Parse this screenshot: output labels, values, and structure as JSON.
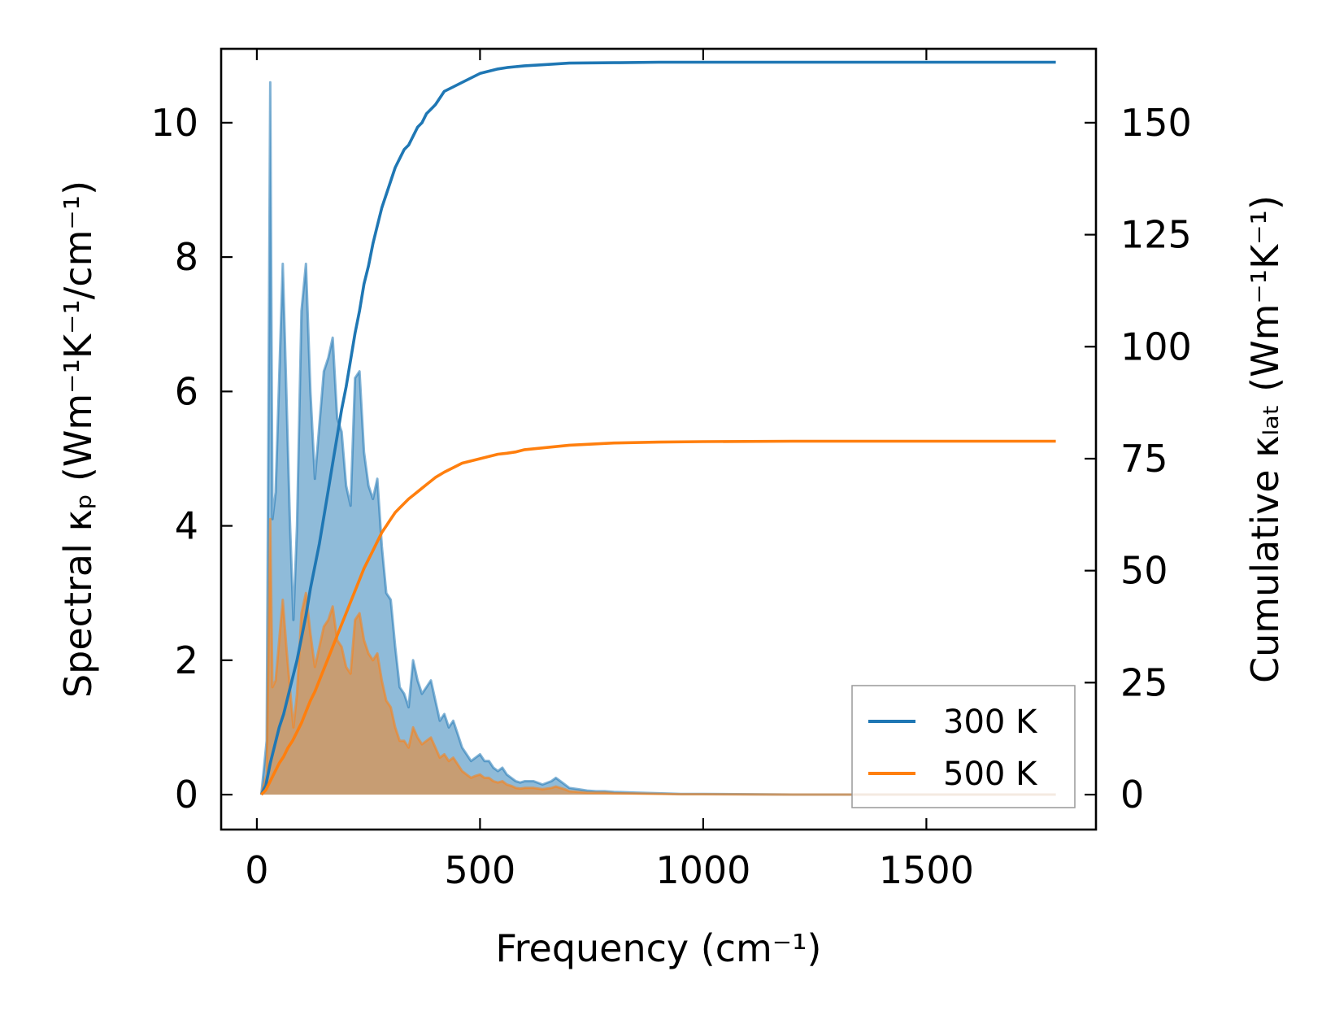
{
  "chart_data": {
    "type": "line",
    "x_axis": {
      "label": "Frequency (cm⁻¹)",
      "range": [
        -80,
        1880
      ],
      "ticks": [
        0,
        500,
        1000,
        1500
      ]
    },
    "y_axis_left": {
      "label": "Spectral κₚ (Wm⁻¹K⁻¹/cm⁻¹)",
      "range": [
        -0.52,
        11.1
      ],
      "ticks": [
        0,
        2,
        4,
        6,
        8,
        10
      ]
    },
    "y_axis_right": {
      "label": "Cumulative κₗₐₜ (Wm⁻¹K⁻¹)",
      "range": [
        -7.8,
        166.5
      ],
      "ticks": [
        0,
        25,
        50,
        75,
        100,
        125,
        150
      ]
    },
    "legend": {
      "position": "lower-right"
    },
    "grid": false,
    "series": [
      {
        "name": "300 K",
        "color": "#1f77b4",
        "spectral": {
          "x": [
            10,
            22,
            30,
            35,
            42,
            50,
            58,
            66,
            74,
            82,
            90,
            100,
            110,
            120,
            130,
            140,
            150,
            160,
            170,
            180,
            190,
            200,
            210,
            220,
            230,
            240,
            250,
            260,
            270,
            280,
            290,
            300,
            310,
            320,
            330,
            340,
            350,
            360,
            370,
            380,
            390,
            400,
            410,
            420,
            430,
            440,
            450,
            460,
            470,
            480,
            490,
            500,
            510,
            520,
            530,
            540,
            550,
            560,
            570,
            580,
            590,
            600,
            620,
            640,
            660,
            670,
            680,
            690,
            700,
            720,
            740,
            760,
            780,
            800,
            850,
            900,
            950,
            1000,
            1200,
            1500,
            1790
          ],
          "y": [
            0,
            0.8,
            10.6,
            4.1,
            4.5,
            6.2,
            7.9,
            6.0,
            4.1,
            2.6,
            4.0,
            7.2,
            7.9,
            6.0,
            4.7,
            5.5,
            6.3,
            6.5,
            6.8,
            5.6,
            5.4,
            4.6,
            4.3,
            6.2,
            6.3,
            5.1,
            4.6,
            4.4,
            4.7,
            3.7,
            3.0,
            2.9,
            2.2,
            1.6,
            1.5,
            1.3,
            2.0,
            1.7,
            1.5,
            1.6,
            1.7,
            1.4,
            1.1,
            1.2,
            1.0,
            1.1,
            0.9,
            0.7,
            0.6,
            0.5,
            0.55,
            0.6,
            0.5,
            0.5,
            0.4,
            0.35,
            0.4,
            0.3,
            0.25,
            0.2,
            0.18,
            0.2,
            0.2,
            0.15,
            0.2,
            0.25,
            0.2,
            0.15,
            0.1,
            0.08,
            0.06,
            0.05,
            0.05,
            0.04,
            0.03,
            0.02,
            0.01,
            0.01,
            0,
            0,
            0
          ]
        },
        "cumulative": {
          "x": [
            10,
            20,
            30,
            40,
            50,
            60,
            70,
            80,
            90,
            100,
            110,
            120,
            130,
            140,
            150,
            160,
            170,
            180,
            190,
            200,
            210,
            220,
            230,
            240,
            250,
            260,
            270,
            280,
            290,
            300,
            310,
            320,
            330,
            340,
            350,
            360,
            370,
            380,
            390,
            400,
            420,
            440,
            460,
            480,
            500,
            520,
            540,
            560,
            580,
            600,
            650,
            700,
            800,
            900,
            1000,
            1200,
            1500,
            1790
          ],
          "y": [
            0,
            2,
            7,
            11,
            15,
            18,
            22,
            26,
            30,
            35,
            40,
            46,
            51,
            56,
            62,
            68,
            74,
            80,
            86,
            91,
            97,
            103,
            108,
            114,
            118,
            123,
            127,
            131,
            134,
            137,
            140,
            142,
            144,
            145,
            147,
            149,
            150,
            152,
            153,
            154,
            157,
            158,
            159,
            160,
            161,
            161.5,
            162,
            162.3,
            162.5,
            162.7,
            163,
            163.3,
            163.4,
            163.5,
            163.5,
            163.5,
            163.5,
            163.5
          ]
        }
      },
      {
        "name": "500 K",
        "color": "#ff7f0e",
        "spectral": {
          "x": [
            10,
            22,
            30,
            35,
            42,
            50,
            58,
            66,
            74,
            82,
            90,
            100,
            110,
            120,
            130,
            140,
            150,
            160,
            170,
            180,
            190,
            200,
            210,
            220,
            230,
            240,
            250,
            260,
            270,
            280,
            290,
            300,
            310,
            320,
            330,
            340,
            350,
            360,
            370,
            380,
            390,
            400,
            410,
            420,
            430,
            440,
            450,
            460,
            470,
            480,
            490,
            500,
            510,
            520,
            530,
            540,
            550,
            560,
            570,
            580,
            590,
            600,
            620,
            640,
            660,
            670,
            680,
            690,
            700,
            720,
            740,
            760,
            780,
            800,
            850,
            900,
            950,
            1000,
            1200,
            1500,
            1790
          ],
          "y": [
            0,
            0.3,
            4.1,
            1.6,
            1.7,
            2.3,
            2.9,
            2.2,
            1.6,
            1.0,
            1.5,
            2.7,
            3.0,
            2.4,
            1.9,
            2.2,
            2.5,
            2.6,
            2.8,
            2.3,
            2.2,
            1.9,
            1.8,
            2.6,
            2.7,
            2.3,
            2.1,
            2.0,
            2.1,
            1.7,
            1.4,
            1.3,
            1.0,
            0.8,
            0.8,
            0.7,
            1.0,
            0.85,
            0.75,
            0.8,
            0.85,
            0.7,
            0.55,
            0.6,
            0.5,
            0.55,
            0.45,
            0.35,
            0.3,
            0.25,
            0.28,
            0.3,
            0.25,
            0.25,
            0.2,
            0.18,
            0.2,
            0.15,
            0.13,
            0.1,
            0.09,
            0.1,
            0.1,
            0.08,
            0.1,
            0.12,
            0.1,
            0.08,
            0.05,
            0.04,
            0.03,
            0.03,
            0.03,
            0.02,
            0.015,
            0.01,
            0.005,
            0.005,
            0,
            0,
            0
          ]
        },
        "cumulative": {
          "x": [
            10,
            20,
            30,
            40,
            50,
            60,
            70,
            80,
            90,
            100,
            110,
            120,
            130,
            140,
            150,
            160,
            170,
            180,
            190,
            200,
            210,
            220,
            230,
            240,
            250,
            260,
            270,
            280,
            290,
            300,
            310,
            320,
            330,
            340,
            350,
            360,
            370,
            380,
            390,
            400,
            420,
            440,
            460,
            480,
            500,
            520,
            540,
            560,
            580,
            600,
            650,
            700,
            800,
            900,
            1000,
            1200,
            1500,
            1790
          ],
          "y": [
            0,
            1,
            3,
            5,
            7,
            8.5,
            10.5,
            12,
            14,
            16,
            18.5,
            21,
            23,
            25.5,
            28,
            30.5,
            33,
            35.5,
            38,
            40.5,
            43,
            45.5,
            48,
            50.5,
            52.5,
            54.5,
            56.5,
            58.5,
            60,
            61.5,
            63,
            64,
            65,
            66,
            66.8,
            67.6,
            68.4,
            69.2,
            70,
            70.8,
            72,
            73,
            74,
            74.5,
            75,
            75.5,
            76,
            76.2,
            76.5,
            77,
            77.5,
            78,
            78.5,
            78.7,
            78.8,
            78.9,
            78.9,
            78.9
          ]
        }
      }
    ]
  }
}
